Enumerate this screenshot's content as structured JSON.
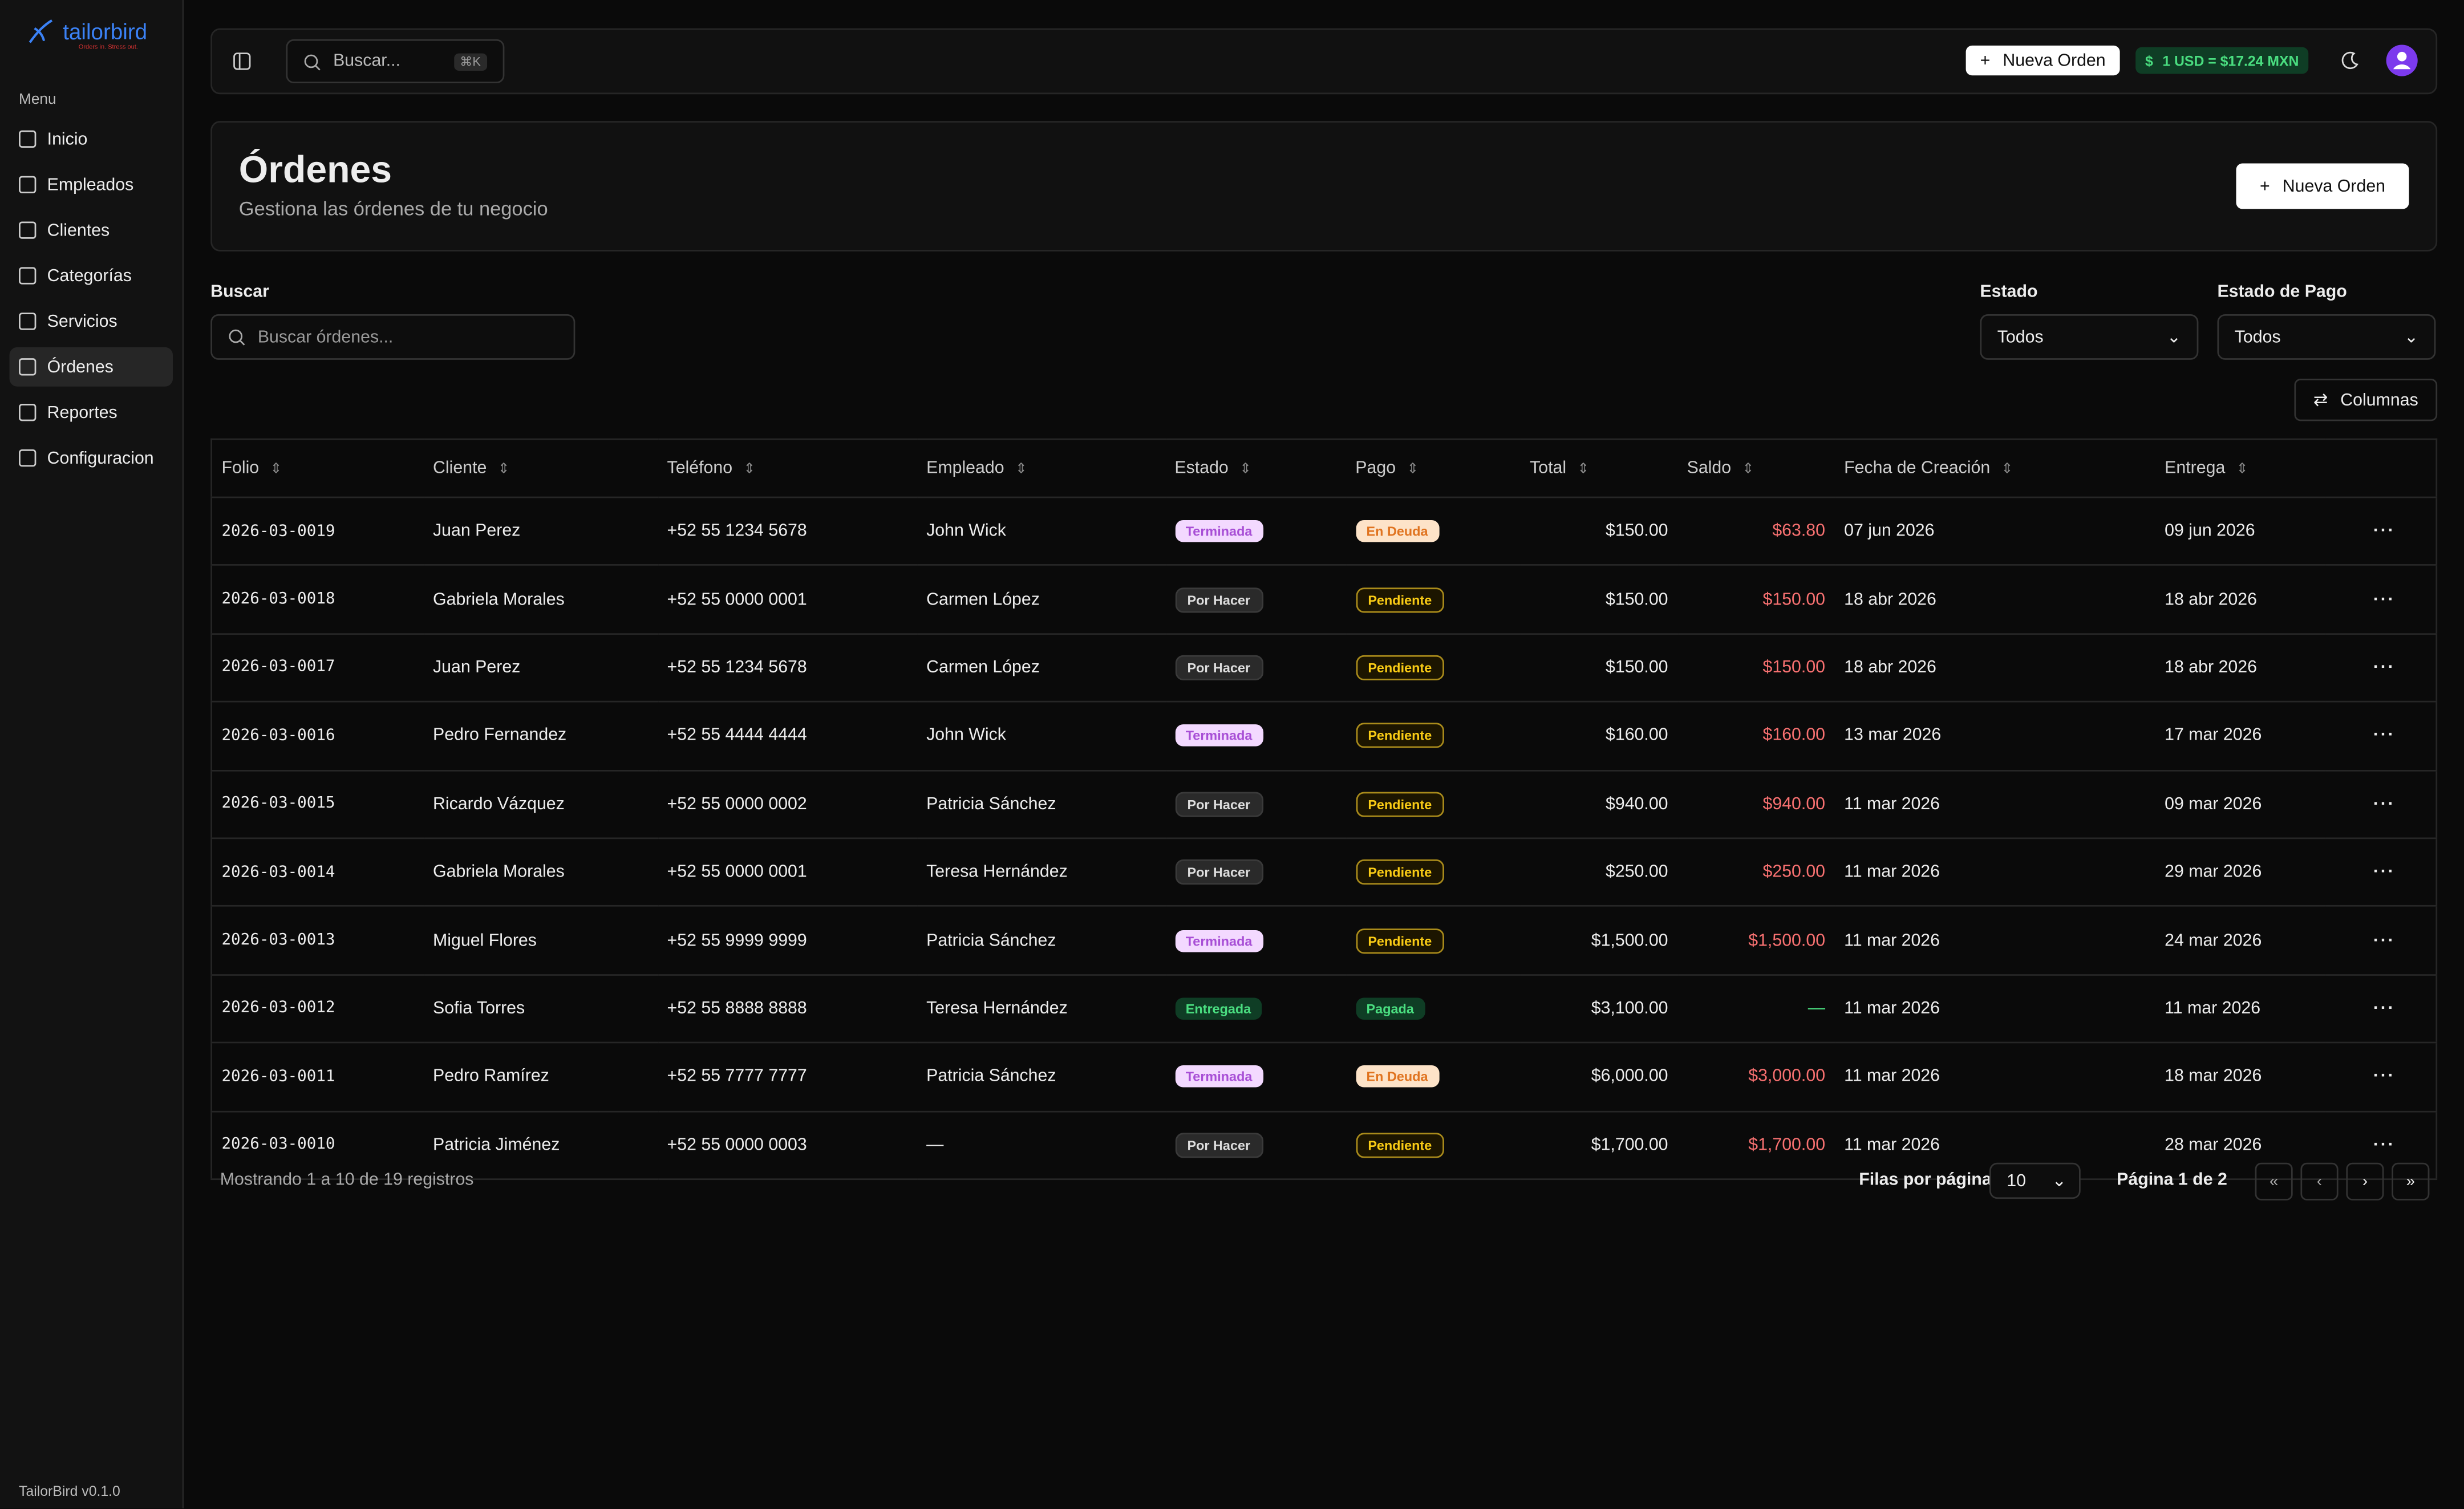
{
  "brand": {
    "name": "tailorbird",
    "tagline": "Orders in. Stress out."
  },
  "sidebar": {
    "menu_label": "Menu",
    "items": [
      "Inicio",
      "Empleados",
      "Clientes",
      "Categorías",
      "Servicios",
      "Órdenes",
      "Reportes",
      "Configuracion"
    ],
    "active": "Órdenes",
    "version": "TailorBird v0.1.0"
  },
  "topbar": {
    "search": "Buscar...",
    "shortcut": "⌘K",
    "new_order": "Nueva Orden",
    "currency_symbol": "$",
    "rate": "1 USD = $17.24 MXN"
  },
  "header": {
    "title": "Órdenes",
    "subtitle": "Gestiona las órdenes de tu negocio",
    "button": "Nueva Orden"
  },
  "filters": {
    "search_label": "Buscar",
    "search_placeholder": "Buscar órdenes...",
    "status_label": "Estado",
    "status_value": "Todos",
    "payment_label": "Estado de Pago",
    "payment_value": "Todos",
    "columns_button": "Columnas"
  },
  "table": {
    "columns": [
      "Folio",
      "Cliente",
      "Teléfono",
      "Empleado",
      "Estado",
      "Pago",
      "Total",
      "Saldo",
      "Fecha de Creación",
      "Entrega"
    ],
    "rows": [
      [
        "2026-03-0019",
        "Juan Perez",
        "+52 55 1234 5678",
        "John Wick",
        "Terminada",
        "En Deuda",
        "$150.00",
        "$63.80",
        "07 jun 2026",
        "09 jun 2026"
      ],
      [
        "2026-03-0018",
        "Gabriela Morales",
        "+52 55 0000 0001",
        "Carmen López",
        "Por Hacer",
        "Pendiente",
        "$150.00",
        "$150.00",
        "18 abr 2026",
        "18 abr 2026"
      ],
      [
        "2026-03-0017",
        "Juan Perez",
        "+52 55 1234 5678",
        "Carmen López",
        "Por Hacer",
        "Pendiente",
        "$150.00",
        "$150.00",
        "18 abr 2026",
        "18 abr 2026"
      ],
      [
        "2026-03-0016",
        "Pedro Fernandez",
        "+52 55 4444 4444",
        "John Wick",
        "Terminada",
        "Pendiente",
        "$160.00",
        "$160.00",
        "13 mar 2026",
        "17 mar 2026"
      ],
      [
        "2026-03-0015",
        "Ricardo Vázquez",
        "+52 55 0000 0002",
        "Patricia Sánchez",
        "Por Hacer",
        "Pendiente",
        "$940.00",
        "$940.00",
        "11 mar 2026",
        "09 mar 2026"
      ],
      [
        "2026-03-0014",
        "Gabriela Morales",
        "+52 55 0000 0001",
        "Teresa Hernández",
        "Por Hacer",
        "Pendiente",
        "$250.00",
        "$250.00",
        "11 mar 2026",
        "29 mar 2026"
      ],
      [
        "2026-03-0013",
        "Miguel Flores",
        "+52 55 9999 9999",
        "Patricia Sánchez",
        "Terminada",
        "Pendiente",
        "$1,500.00",
        "$1,500.00",
        "11 mar 2026",
        "24 mar 2026"
      ],
      [
        "2026-03-0012",
        "Sofia Torres",
        "+52 55 8888 8888",
        "Teresa Hernández",
        "Entregada",
        "Pagada",
        "$3,100.00",
        "—",
        "11 mar 2026",
        "11 mar 2026"
      ],
      [
        "2026-03-0011",
        "Pedro Ramírez",
        "+52 55 7777 7777",
        "Patricia Sánchez",
        "Terminada",
        "En Deuda",
        "$6,000.00",
        "$3,000.00",
        "11 mar 2026",
        "18 mar 2026"
      ],
      [
        "2026-03-0010",
        "Patricia Jiménez",
        "+52 55 0000 0003",
        "—",
        "Por Hacer",
        "Pendiente",
        "$1,700.00",
        "$1,700.00",
        "11 mar 2026",
        "28 mar 2026"
      ]
    ]
  },
  "pagination": {
    "summary": "Mostrando 1 a 10 de 19 registros",
    "rows_label": "Filas por página",
    "rows_value": "10",
    "page": "Página 1 de 2"
  }
}
